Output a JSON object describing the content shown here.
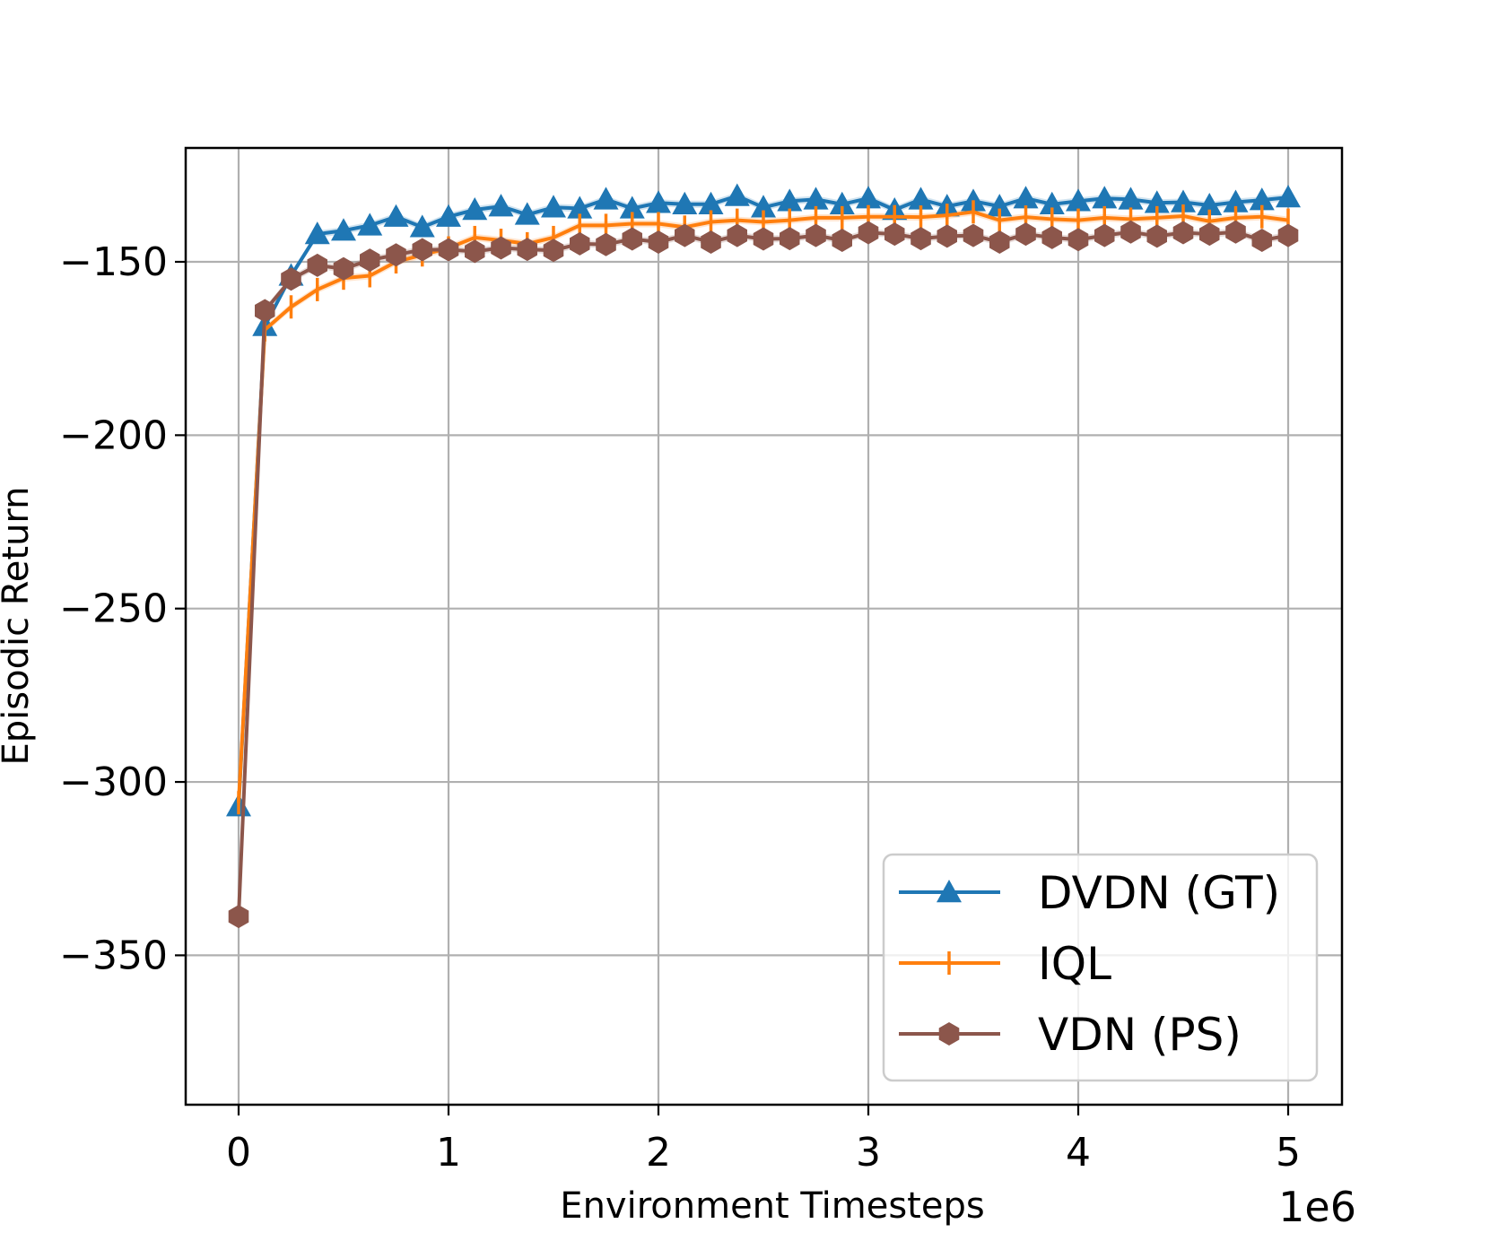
{
  "chart_data": {
    "type": "line",
    "title": "",
    "xlabel": "Environment Timesteps",
    "ylabel": "Episodic Return",
    "x_offset_label": "1e6",
    "xlim": [
      -0.25,
      5.25
    ],
    "ylim": [
      -396,
      -117
    ],
    "xticks": [
      0,
      1,
      2,
      3,
      4,
      5
    ],
    "xtick_labels": [
      "0",
      "1",
      "2",
      "3",
      "4",
      "5"
    ],
    "yticks": [
      -150,
      -200,
      -250,
      -300,
      -350
    ],
    "ytick_labels": [
      "−150",
      "−200",
      "−250",
      "−300",
      "−350"
    ],
    "grid": true,
    "legend_position": "lower-right",
    "x": [
      0,
      0.125,
      0.25,
      0.375,
      0.5,
      0.625,
      0.75,
      0.875,
      1.0,
      1.125,
      1.25,
      1.375,
      1.5,
      1.625,
      1.75,
      1.875,
      2.0,
      2.125,
      2.25,
      2.375,
      2.5,
      2.625,
      2.75,
      2.875,
      3.0,
      3.125,
      3.25,
      3.375,
      3.5,
      3.625,
      3.75,
      3.875,
      4.0,
      4.125,
      4.25,
      4.375,
      4.5,
      4.625,
      4.75,
      4.875,
      5.0
    ],
    "series": [
      {
        "name": "DVDN (GT)",
        "color": "#1f77b4",
        "marker": "triangle",
        "values": [
          -307,
          -168.5,
          -154,
          -142,
          -141,
          -139.5,
          -137,
          -140,
          -137,
          -135,
          -134,
          -136.4,
          -134.3,
          -134.6,
          -132,
          -134.6,
          -133,
          -133.4,
          -133.4,
          -131,
          -134.3,
          -132.5,
          -132,
          -133.4,
          -131.7,
          -135,
          -132,
          -134,
          -132.5,
          -134,
          -131.7,
          -133.4,
          -132.5,
          -131.7,
          -132,
          -133,
          -132.8,
          -133.7,
          -132.8,
          -132.2,
          -131.4
        ]
      },
      {
        "name": "IQL",
        "color": "#ff7f0e",
        "marker": "vline",
        "values": [
          -306,
          -169.6,
          -163,
          -158,
          -154.7,
          -154,
          -150,
          -148,
          -146,
          -143,
          -143.8,
          -144.8,
          -143,
          -139.5,
          -139.5,
          -139,
          -139,
          -140,
          -138.5,
          -138,
          -138.5,
          -138,
          -137.3,
          -137.3,
          -137,
          -137,
          -137.1,
          -136.6,
          -135.6,
          -138,
          -137.1,
          -137.7,
          -138,
          -137.3,
          -137.7,
          -137.3,
          -136.8,
          -138.3,
          -137.3,
          -137,
          -138
        ]
      },
      {
        "name": "VDN (PS)",
        "color": "#8c564b",
        "marker": "hexagon",
        "values": [
          -338.8,
          -164.1,
          -155,
          -151,
          -152,
          -149.5,
          -148,
          -146.5,
          -146.5,
          -147,
          -146,
          -146.4,
          -146.7,
          -144.8,
          -145,
          -143.4,
          -144.3,
          -142.4,
          -144.3,
          -142.4,
          -143.4,
          -143.3,
          -142.4,
          -143.8,
          -141.6,
          -142,
          -143.3,
          -142.6,
          -142.4,
          -144.3,
          -142,
          -143,
          -143.6,
          -142.4,
          -141.4,
          -142.6,
          -141.6,
          -142,
          -141.4,
          -143.8,
          -142.4
        ]
      }
    ]
  }
}
